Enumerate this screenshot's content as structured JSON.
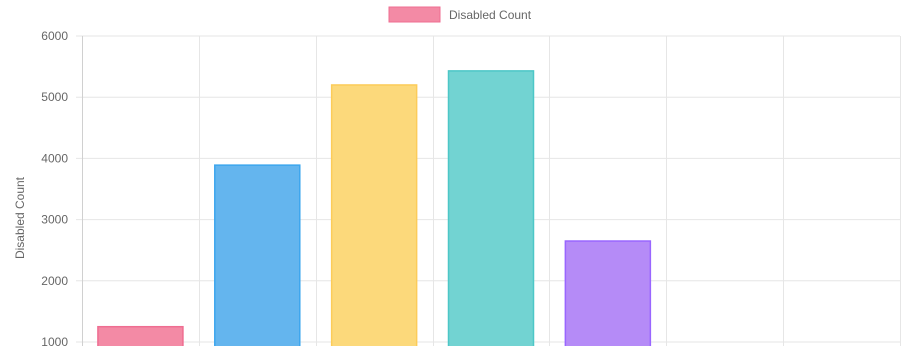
{
  "chart_data": {
    "type": "bar",
    "legend": {
      "label": "Disabled Count",
      "color": "#f38aa5",
      "border_color": "#ef6d91",
      "placement": "top-center"
    },
    "ylabel": "Disabled Count",
    "xlabel": "",
    "ylim": [
      1000,
      6000
    ],
    "yticks": [
      "6000",
      "5000",
      "4000",
      "3000",
      "2000",
      "1000"
    ],
    "y_tick_values": [
      6000,
      5000,
      4000,
      3000,
      2000,
      1000
    ],
    "grid": true,
    "slots": 7,
    "values": [
      1250,
      3890,
      5200,
      5430,
      2650
    ],
    "colors": [
      "#f38aa5",
      "#64b5ee",
      "#fcd97b",
      "#72d3d2",
      "#b58bf7"
    ],
    "border_colors": [
      "#ef6d91",
      "#3da6ee",
      "#fccc59",
      "#4dc7c7",
      "#9966ff"
    ]
  }
}
